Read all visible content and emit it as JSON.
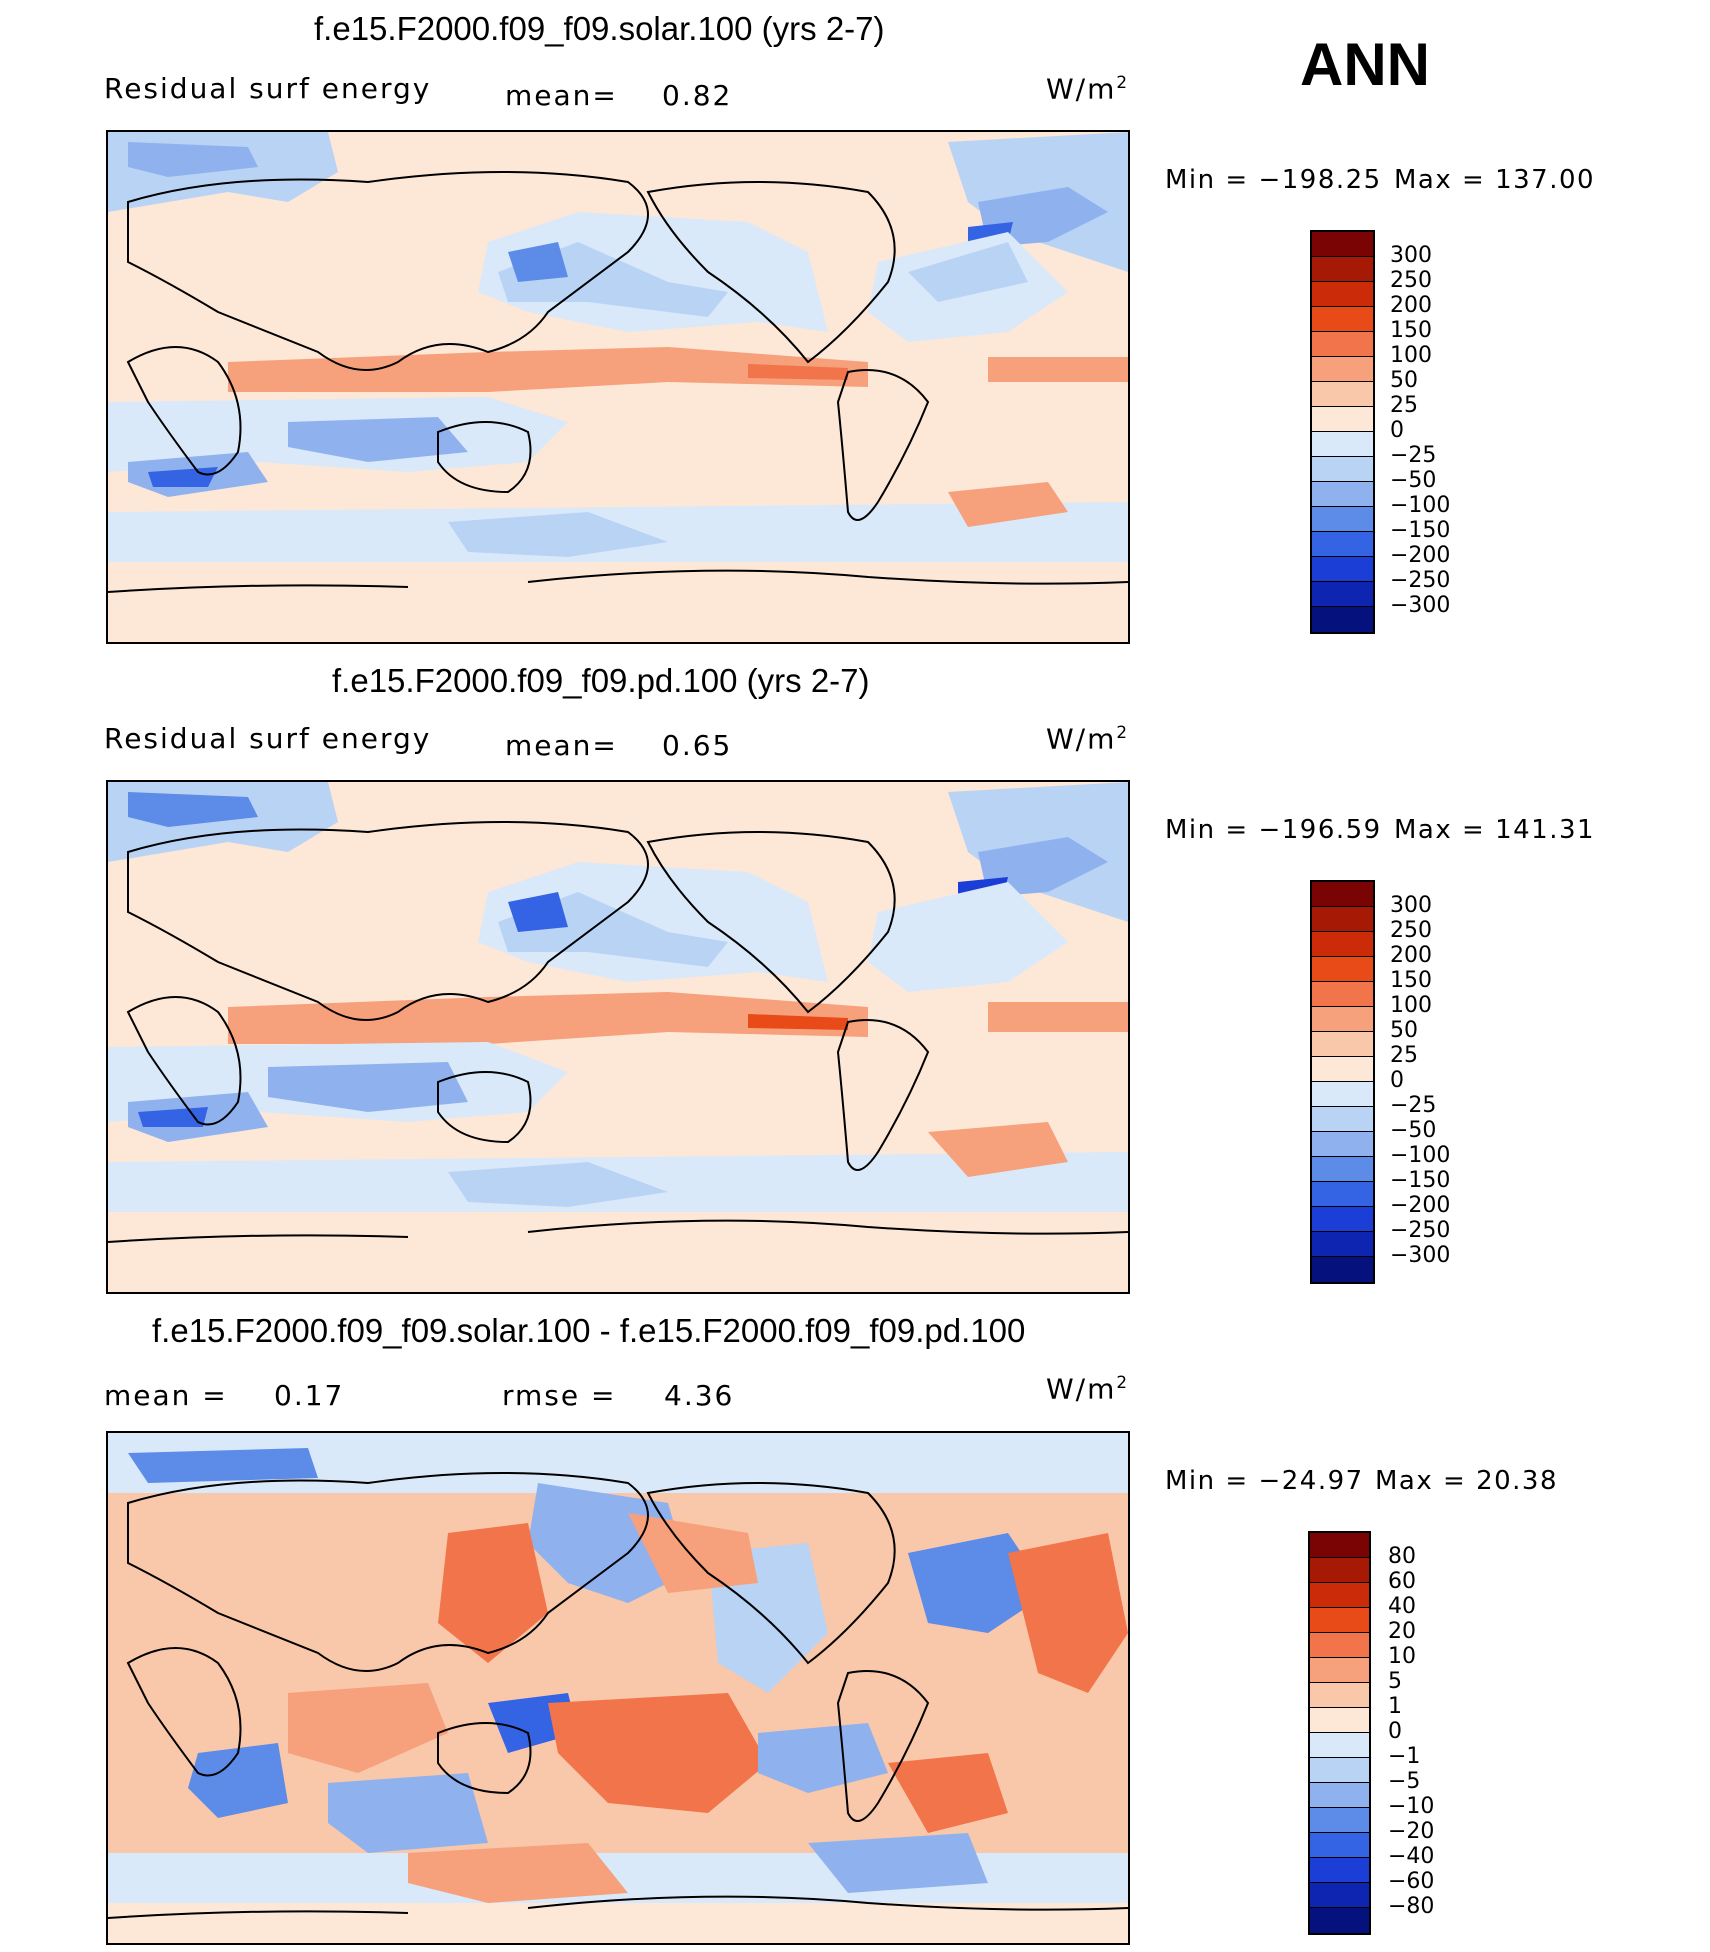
{
  "season": "ANN",
  "chart_data": [
    {
      "type": "heatmap",
      "title": "f.e15.F2000.f09_f09.solar.100 (yrs 2-7)",
      "left_label": "Residual surf energy",
      "mean_label": "mean=",
      "mean_value": "0.82",
      "units": "W/m",
      "units_sup": "2",
      "min_text": "Min = −198.25",
      "max_text": "Max = 137.00",
      "min": -198.25,
      "max": 137.0,
      "colorbar_levels": [
        "300",
        "250",
        "200",
        "150",
        "100",
        "50",
        "25",
        "0",
        "−25",
        "−50",
        "−100",
        "−150",
        "−200",
        "−250",
        "−300"
      ],
      "colorbar_colors": [
        "#7a0403",
        "#a61a05",
        "#cc2b0a",
        "#e84a18",
        "#f2744a",
        "#f6a07c",
        "#f9c7a9",
        "#fde7d7",
        "#dae9f9",
        "#b9d3f5",
        "#8fb2ef",
        "#5d8be8",
        "#3463e3",
        "#1b3fd6",
        "#0d25b0",
        "#05127e"
      ]
    },
    {
      "type": "heatmap",
      "title": "f.e15.F2000.f09_f09.pd.100 (yrs 2-7)",
      "left_label": "Residual surf energy",
      "mean_label": "mean=",
      "mean_value": "0.65",
      "units": "W/m",
      "units_sup": "2",
      "min_text": "Min = −196.59",
      "max_text": "Max = 141.31",
      "min": -196.59,
      "max": 141.31,
      "colorbar_levels": [
        "300",
        "250",
        "200",
        "150",
        "100",
        "50",
        "25",
        "0",
        "−25",
        "−50",
        "−100",
        "−150",
        "−200",
        "−250",
        "−300"
      ],
      "colorbar_colors": [
        "#7a0403",
        "#a61a05",
        "#cc2b0a",
        "#e84a18",
        "#f2744a",
        "#f6a07c",
        "#f9c7a9",
        "#fde7d7",
        "#dae9f9",
        "#b9d3f5",
        "#8fb2ef",
        "#5d8be8",
        "#3463e3",
        "#1b3fd6",
        "#0d25b0",
        "#05127e"
      ]
    },
    {
      "type": "heatmap",
      "title": "f.e15.F2000.f09_f09.solar.100 - f.e15.F2000.f09_f09.pd.100",
      "mean_label": "mean =",
      "mean_value": "0.17",
      "rmse_label": "rmse =",
      "rmse_value": "4.36",
      "units": "W/m",
      "units_sup": "2",
      "min_text": "Min = −24.97",
      "max_text": "Max =  20.38",
      "min": -24.97,
      "max": 20.38,
      "colorbar_levels": [
        "80",
        "60",
        "40",
        "20",
        "10",
        "5",
        "1",
        "0",
        "−1",
        "−5",
        "−10",
        "−20",
        "−40",
        "−60",
        "−80"
      ],
      "colorbar_colors": [
        "#7a0403",
        "#a61a05",
        "#cc2b0a",
        "#e84a18",
        "#f2744a",
        "#f6a07c",
        "#f9c7a9",
        "#fde7d7",
        "#dae9f9",
        "#b9d3f5",
        "#8fb2ef",
        "#5d8be8",
        "#3463e3",
        "#1b3fd6",
        "#0d25b0",
        "#05127e"
      ]
    }
  ]
}
